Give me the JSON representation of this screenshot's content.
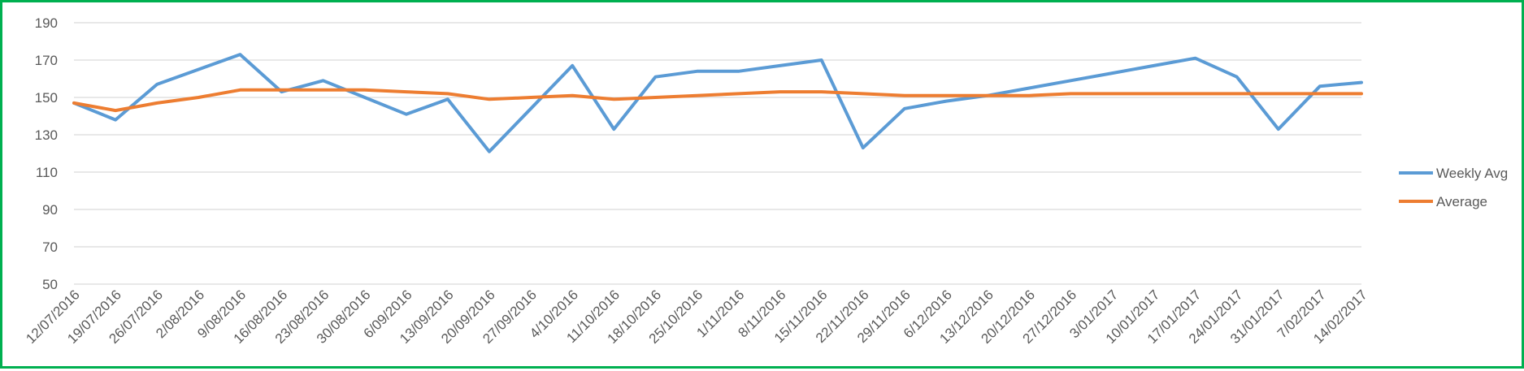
{
  "colors": {
    "border": "#00b050",
    "weekly": "#5b9bd5",
    "average": "#ed7d31",
    "grid": "#d9d9d9",
    "text": "#595959"
  },
  "chart_data": {
    "type": "line",
    "title": "",
    "xlabel": "",
    "ylabel": "",
    "ylim": [
      50,
      190
    ],
    "yticks": [
      50,
      70,
      90,
      110,
      130,
      150,
      170,
      190
    ],
    "grid": true,
    "legend": "right",
    "x": [
      "12/07/2016",
      "19/07/2016",
      "26/07/2016",
      "2/08/2016",
      "9/08/2016",
      "16/08/2016",
      "23/08/2016",
      "30/08/2016",
      "6/09/2016",
      "13/09/2016",
      "20/09/2016",
      "27/09/2016",
      "4/10/2016",
      "11/10/2016",
      "18/10/2016",
      "25/10/2016",
      "1/11/2016",
      "8/11/2016",
      "15/11/2016",
      "22/11/2016",
      "29/11/2016",
      "6/12/2016",
      "13/12/2016",
      "20/12/2016",
      "27/12/2016",
      "3/01/2017",
      "10/01/2017",
      "17/01/2017",
      "24/01/2017",
      "31/01/2017",
      "7/02/2017",
      "14/02/2017"
    ],
    "series": [
      {
        "name": "Weekly Avg",
        "values": [
          147,
          138,
          157,
          165,
          173,
          153,
          159,
          150,
          141,
          149,
          121,
          144,
          167,
          133,
          161,
          164,
          164,
          167,
          170,
          123,
          144,
          148,
          151,
          155,
          159,
          163,
          167,
          171,
          161,
          133,
          156,
          158
        ]
      },
      {
        "name": "Average",
        "values": [
          147,
          143,
          147,
          150,
          154,
          154,
          154,
          154,
          153,
          152,
          149,
          150,
          151,
          149,
          150,
          151,
          152,
          153,
          153,
          152,
          151,
          151,
          151,
          151,
          152,
          152,
          152,
          152,
          152,
          152,
          152,
          152
        ]
      }
    ]
  }
}
